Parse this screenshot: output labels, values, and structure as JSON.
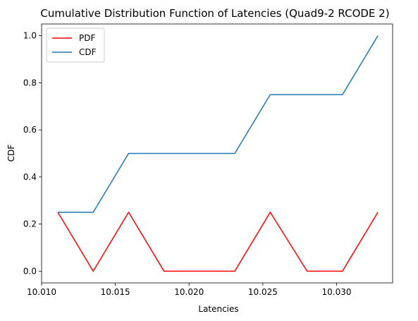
{
  "chart_data": {
    "type": "line",
    "title": "Cumulative Distribution Function of Latencies (Quad9-2 RCODE 2)",
    "xlabel": "Latencies",
    "ylabel": "CDF",
    "xlim": [
      10.01,
      10.0338
    ],
    "ylim": [
      -0.05,
      1.05
    ],
    "x": [
      10.0111,
      10.0135,
      10.0159,
      10.0183,
      10.0207,
      10.0231,
      10.0255,
      10.028,
      10.0304,
      10.0328
    ],
    "xticks": [
      "10.010",
      "10.015",
      "10.020",
      "10.025",
      "10.030"
    ],
    "xtick_values": [
      10.01,
      10.015,
      10.02,
      10.025,
      10.03
    ],
    "yticks": [
      "0.0",
      "0.2",
      "0.4",
      "0.6",
      "0.8",
      "1.0"
    ],
    "ytick_values": [
      0.0,
      0.2,
      0.4,
      0.6,
      0.8,
      1.0
    ],
    "series": [
      {
        "name": "PDF",
        "color": "#ff0000",
        "values": [
          0.25,
          0.0,
          0.25,
          0.0,
          0.0,
          0.0,
          0.25,
          0.0,
          0.0,
          0.25
        ]
      },
      {
        "name": "CDF",
        "color": "#1f77b4",
        "values": [
          0.25,
          0.25,
          0.5,
          0.5,
          0.5,
          0.5,
          0.75,
          0.75,
          0.75,
          1.0
        ]
      }
    ],
    "legend_position": "top-left",
    "grid": false
  }
}
